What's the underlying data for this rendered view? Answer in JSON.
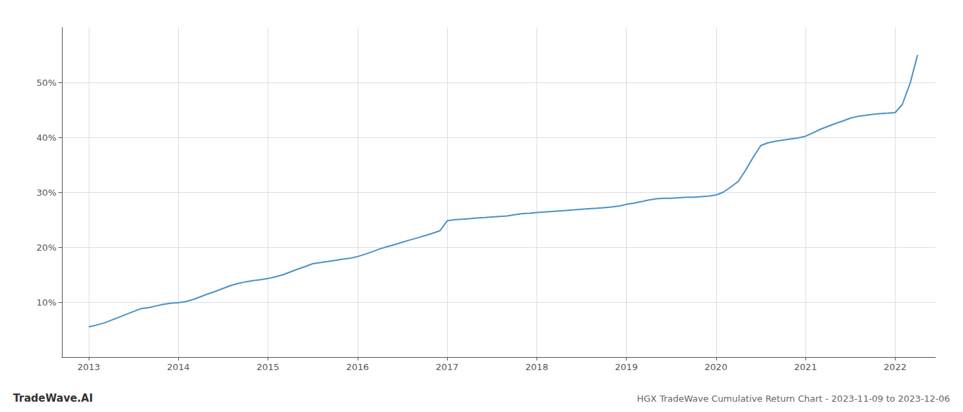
{
  "chart_data": {
    "type": "line",
    "title": "HGX TradeWave Cumulative Return Chart - 2023-11-09 to 2023-12-06",
    "annotations": [
      "TradeWave.AI"
    ],
    "color": "#4a90c4",
    "x": [
      2013.0,
      2013.08,
      2013.17,
      2013.25,
      2013.33,
      2013.42,
      2013.5,
      2013.58,
      2013.67,
      2013.75,
      2013.83,
      2013.92,
      2014.0,
      2014.08,
      2014.17,
      2014.25,
      2014.33,
      2014.42,
      2014.5,
      2014.58,
      2014.67,
      2014.75,
      2014.83,
      2014.92,
      2015.0,
      2015.08,
      2015.17,
      2015.25,
      2015.33,
      2015.42,
      2015.5,
      2015.58,
      2015.67,
      2015.75,
      2015.83,
      2015.92,
      2016.0,
      2016.08,
      2016.17,
      2016.25,
      2016.33,
      2016.42,
      2016.5,
      2016.58,
      2016.67,
      2016.75,
      2016.83,
      2016.92,
      2017.0,
      2017.08,
      2017.17,
      2017.25,
      2017.33,
      2017.42,
      2017.5,
      2017.58,
      2017.67,
      2017.75,
      2017.83,
      2017.92,
      2018.0,
      2018.08,
      2018.17,
      2018.25,
      2018.33,
      2018.42,
      2018.5,
      2018.58,
      2018.67,
      2018.75,
      2018.83,
      2018.92,
      2019.0,
      2019.08,
      2019.17,
      2019.25,
      2019.33,
      2019.42,
      2019.5,
      2019.58,
      2019.67,
      2019.75,
      2019.83,
      2019.92,
      2020.0,
      2020.08,
      2020.17,
      2020.25,
      2020.33,
      2020.42,
      2020.5,
      2020.58,
      2020.67,
      2020.75,
      2020.83,
      2020.92,
      2021.0,
      2021.08,
      2021.17,
      2021.25,
      2021.33,
      2021.42,
      2021.5,
      2021.58,
      2021.67,
      2021.75,
      2021.83,
      2021.92,
      2022.0,
      2022.08,
      2022.17,
      2022.25
    ],
    "values": [
      5.5,
      5.8,
      6.2,
      6.7,
      7.2,
      7.8,
      8.3,
      8.8,
      9.0,
      9.3,
      9.6,
      9.8,
      9.9,
      10.1,
      10.5,
      11.0,
      11.5,
      12.0,
      12.5,
      13.0,
      13.4,
      13.7,
      13.9,
      14.1,
      14.3,
      14.6,
      15.0,
      15.5,
      16.0,
      16.5,
      17.0,
      17.2,
      17.4,
      17.6,
      17.8,
      18.0,
      18.3,
      18.7,
      19.2,
      19.7,
      20.1,
      20.5,
      20.9,
      21.3,
      21.7,
      22.1,
      22.5,
      23.0,
      24.8,
      25.0,
      25.1,
      25.2,
      25.3,
      25.4,
      25.5,
      25.6,
      25.7,
      25.9,
      26.1,
      26.2,
      26.3,
      26.4,
      26.5,
      26.6,
      26.7,
      26.8,
      26.9,
      27.0,
      27.1,
      27.2,
      27.3,
      27.5,
      27.8,
      28.0,
      28.3,
      28.6,
      28.8,
      28.9,
      28.9,
      29.0,
      29.1,
      29.1,
      29.2,
      29.3,
      29.5,
      30.0,
      31.0,
      32.0,
      34.0,
      36.5,
      38.5,
      39.0,
      39.3,
      39.5,
      39.7,
      39.9,
      40.2,
      40.8,
      41.5,
      42.0,
      42.5,
      43.0,
      43.5,
      43.8,
      44.0,
      44.2,
      44.3,
      44.4,
      44.5,
      46.0,
      50.0,
      55.0
    ],
    "xlim": [
      2012.7,
      2022.45
    ],
    "xticks": [
      2013,
      2014,
      2015,
      2016,
      2017,
      2018,
      2019,
      2020,
      2021,
      2022
    ],
    "ylim": [
      0,
      60
    ],
    "yticks": [
      {
        "value": 10,
        "label": "10%"
      },
      {
        "value": 20,
        "label": "20%"
      },
      {
        "value": 30,
        "label": "30%"
      },
      {
        "value": 40,
        "label": "40%"
      },
      {
        "value": 50,
        "label": "50%"
      }
    ],
    "grid": true
  }
}
